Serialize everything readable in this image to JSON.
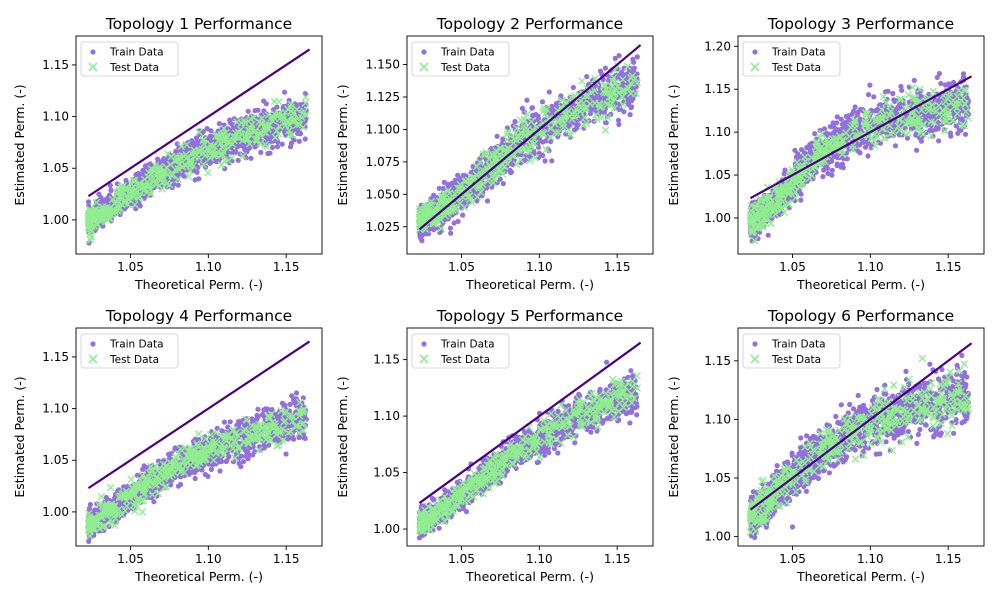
{
  "figure": {
    "background": "#ffffff"
  },
  "style": {
    "train_color": "#9370DB",
    "test_color": "#90EE90",
    "ideal_line_color": "#4B0082"
  },
  "chart_data": [
    {
      "type": "scatter",
      "title": "Topology 1 Performance",
      "xlabel": "Theoretical Perm. (-)",
      "ylabel": "Estimated Perm. (-)",
      "xlim": [
        1.015,
        1.173
      ],
      "ylim": [
        0.967,
        1.178
      ],
      "xticks": [
        1.05,
        1.1,
        1.15
      ],
      "xtick_labels": [
        "1.05",
        "1.10",
        "1.15"
      ],
      "yticks": [
        1.0,
        1.05,
        1.1,
        1.15
      ],
      "ytick_labels": [
        "1.00",
        "1.05",
        "1.10",
        "1.15"
      ],
      "legend": {
        "position": "top-left",
        "entries": [
          "Train Data",
          "Test Data"
        ]
      },
      "ideal_line": {
        "x": [
          1.023,
          1.165
        ],
        "y": [
          1.023,
          1.165
        ]
      },
      "trend": {
        "x": [
          1.025,
          1.045,
          1.065,
          1.085,
          1.105,
          1.125,
          1.145,
          1.16
        ],
        "y": [
          1.0,
          1.02,
          1.04,
          1.058,
          1.072,
          1.083,
          1.093,
          1.1
        ]
      },
      "spread": 0.008,
      "series": [
        {
          "name": "Train Data",
          "marker": "circle",
          "color": "#9370DB"
        },
        {
          "name": "Test Data",
          "marker": "x",
          "color": "#90EE90"
        }
      ]
    },
    {
      "type": "scatter",
      "title": "Topology 2 Performance",
      "xlabel": "Theoretical Perm. (-)",
      "ylabel": "Estimated Perm. (-)",
      "xlim": [
        1.015,
        1.173
      ],
      "ylim": [
        1.004,
        1.172
      ],
      "xticks": [
        1.05,
        1.1,
        1.15
      ],
      "xtick_labels": [
        "1.05",
        "1.10",
        "1.15"
      ],
      "yticks": [
        1.025,
        1.05,
        1.075,
        1.1,
        1.125,
        1.15
      ],
      "ytick_labels": [
        "1.025",
        "1.050",
        "1.075",
        "1.100",
        "1.125",
        "1.150"
      ],
      "legend": {
        "position": "top-left",
        "entries": [
          "Train Data",
          "Test Data"
        ]
      },
      "ideal_line": {
        "x": [
          1.023,
          1.165
        ],
        "y": [
          1.023,
          1.165
        ]
      },
      "trend": {
        "x": [
          1.025,
          1.045,
          1.065,
          1.085,
          1.105,
          1.125,
          1.145,
          1.16
        ],
        "y": [
          1.03,
          1.045,
          1.066,
          1.087,
          1.103,
          1.117,
          1.128,
          1.134
        ]
      },
      "spread": 0.008,
      "series": [
        {
          "name": "Train Data",
          "marker": "circle",
          "color": "#9370DB"
        },
        {
          "name": "Test Data",
          "marker": "x",
          "color": "#90EE90"
        }
      ]
    },
    {
      "type": "scatter",
      "title": "Topology 3 Performance",
      "xlabel": "Theoretical Perm. (-)",
      "ylabel": "Estimated Perm. (-)",
      "xlim": [
        1.015,
        1.173
      ],
      "ylim": [
        0.958,
        1.212
      ],
      "xticks": [
        1.05,
        1.1,
        1.15
      ],
      "xtick_labels": [
        "1.05",
        "1.10",
        "1.15"
      ],
      "yticks": [
        1.0,
        1.05,
        1.1,
        1.15,
        1.2
      ],
      "ytick_labels": [
        "1.00",
        "1.05",
        "1.10",
        "1.15",
        "1.20"
      ],
      "legend": {
        "position": "top-left",
        "entries": [
          "Train Data",
          "Test Data"
        ]
      },
      "ideal_line": {
        "x": [
          1.023,
          1.165
        ],
        "y": [
          1.023,
          1.165
        ]
      },
      "trend": {
        "x": [
          1.025,
          1.045,
          1.065,
          1.085,
          1.105,
          1.125,
          1.145,
          1.16
        ],
        "y": [
          0.995,
          1.03,
          1.07,
          1.095,
          1.11,
          1.12,
          1.128,
          1.133
        ]
      },
      "spread": 0.012,
      "series": [
        {
          "name": "Train Data",
          "marker": "circle",
          "color": "#9370DB"
        },
        {
          "name": "Test Data",
          "marker": "x",
          "color": "#90EE90"
        }
      ]
    },
    {
      "type": "scatter",
      "title": "Topology 4 Performance",
      "xlabel": "Theoretical Perm. (-)",
      "ylabel": "Estimated Perm. (-)",
      "xlim": [
        1.015,
        1.173
      ],
      "ylim": [
        0.967,
        1.178
      ],
      "xticks": [
        1.05,
        1.1,
        1.15
      ],
      "xtick_labels": [
        "1.05",
        "1.10",
        "1.15"
      ],
      "yticks": [
        1.0,
        1.05,
        1.1,
        1.15
      ],
      "ytick_labels": [
        "1.00",
        "1.05",
        "1.10",
        "1.15"
      ],
      "legend": {
        "position": "top-left",
        "entries": [
          "Train Data",
          "Test Data"
        ]
      },
      "ideal_line": {
        "x": [
          1.023,
          1.165
        ],
        "y": [
          1.023,
          1.165
        ]
      },
      "trend": {
        "x": [
          1.025,
          1.045,
          1.065,
          1.085,
          1.105,
          1.125,
          1.145,
          1.16
        ],
        "y": [
          0.988,
          1.01,
          1.03,
          1.048,
          1.062,
          1.073,
          1.083,
          1.09
        ]
      },
      "spread": 0.008,
      "series": [
        {
          "name": "Train Data",
          "marker": "circle",
          "color": "#9370DB"
        },
        {
          "name": "Test Data",
          "marker": "x",
          "color": "#90EE90"
        }
      ]
    },
    {
      "type": "scatter",
      "title": "Topology 5 Performance",
      "xlabel": "Theoretical Perm. (-)",
      "ylabel": "Estimated Perm. (-)",
      "xlim": [
        1.015,
        1.173
      ],
      "ylim": [
        0.985,
        1.178
      ],
      "xticks": [
        1.05,
        1.1,
        1.15
      ],
      "xtick_labels": [
        "1.05",
        "1.10",
        "1.15"
      ],
      "yticks": [
        1.0,
        1.05,
        1.1,
        1.15
      ],
      "ytick_labels": [
        "1.00",
        "1.05",
        "1.10",
        "1.15"
      ],
      "legend": {
        "position": "top-left",
        "entries": [
          "Train Data",
          "Test Data"
        ]
      },
      "ideal_line": {
        "x": [
          1.023,
          1.165
        ],
        "y": [
          1.023,
          1.165
        ]
      },
      "trend": {
        "x": [
          1.025,
          1.045,
          1.065,
          1.085,
          1.105,
          1.125,
          1.145,
          1.16
        ],
        "y": [
          1.005,
          1.025,
          1.047,
          1.068,
          1.085,
          1.1,
          1.112,
          1.12
        ]
      },
      "spread": 0.007,
      "series": [
        {
          "name": "Train Data",
          "marker": "circle",
          "color": "#9370DB"
        },
        {
          "name": "Test Data",
          "marker": "x",
          "color": "#90EE90"
        }
      ]
    },
    {
      "type": "scatter",
      "title": "Topology 6 Performance",
      "xlabel": "Theoretical Perm. (-)",
      "ylabel": "Estimated Perm. (-)",
      "xlim": [
        1.015,
        1.173
      ],
      "ylim": [
        0.992,
        1.178
      ],
      "xticks": [
        1.05,
        1.1,
        1.15
      ],
      "xtick_labels": [
        "1.05",
        "1.10",
        "1.15"
      ],
      "yticks": [
        1.0,
        1.05,
        1.1,
        1.15
      ],
      "ytick_labels": [
        "1.00",
        "1.05",
        "1.10",
        "1.15"
      ],
      "legend": {
        "position": "top-left",
        "entries": [
          "Train Data",
          "Test Data"
        ]
      },
      "ideal_line": {
        "x": [
          1.023,
          1.165
        ],
        "y": [
          1.023,
          1.165
        ]
      },
      "trend": {
        "x": [
          1.025,
          1.045,
          1.065,
          1.085,
          1.105,
          1.125,
          1.145,
          1.16
        ],
        "y": [
          1.018,
          1.045,
          1.07,
          1.088,
          1.1,
          1.108,
          1.115,
          1.12
        ]
      },
      "spread": 0.01,
      "series": [
        {
          "name": "Train Data",
          "marker": "circle",
          "color": "#9370DB"
        },
        {
          "name": "Test Data",
          "marker": "x",
          "color": "#90EE90"
        }
      ]
    }
  ]
}
